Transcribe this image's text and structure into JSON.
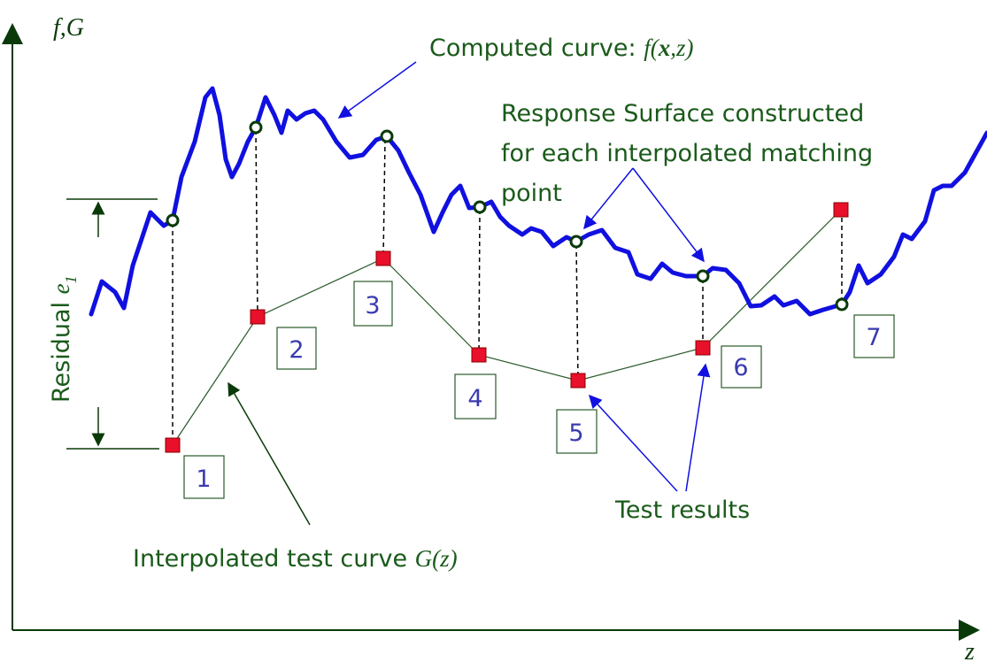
{
  "axes": {
    "y_label": "f,G",
    "x_label": "z"
  },
  "computed_curve": {
    "text": "Computed curve:",
    "formula_a": "f(",
    "formula_b": "x",
    "formula_c": ",z)"
  },
  "response_surface": {
    "lines": [
      "Response Surface constructed",
      "for each interpolated matching",
      "point"
    ]
  },
  "residual": {
    "text": "Residual",
    "symbol": "e",
    "subscript": "1"
  },
  "interpolated": {
    "text": "Interpolated test curve",
    "formula": "G(z)"
  },
  "test_results": "Test results",
  "points": [
    "1",
    "2",
    "3",
    "4",
    "5",
    "6",
    "7"
  ]
}
